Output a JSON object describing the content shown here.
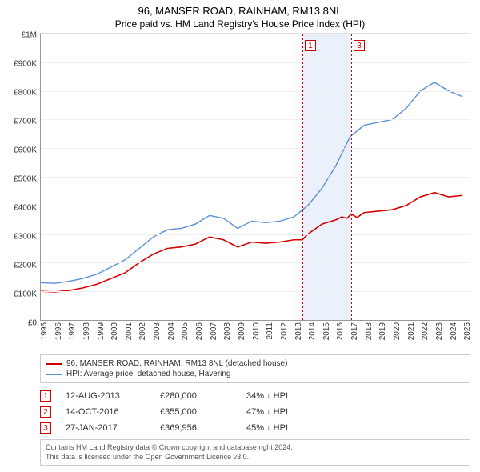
{
  "title": "96, MANSER ROAD, RAINHAM, RM13 8NL",
  "subtitle": "Price paid vs. HM Land Registry's House Price Index (HPI)",
  "chart": {
    "type": "line",
    "background_color": "#ffffff",
    "grid_color": "#eeeeee",
    "axis_color": "#999999",
    "shaded_band_color": "#eaf1fa",
    "x": {
      "min": 1995,
      "max": 2025.5,
      "ticks": [
        1995,
        1996,
        1997,
        1998,
        1999,
        2000,
        2001,
        2002,
        2003,
        2004,
        2005,
        2006,
        2007,
        2008,
        2009,
        2010,
        2011,
        2012,
        2013,
        2014,
        2015,
        2016,
        2017,
        2018,
        2019,
        2020,
        2021,
        2022,
        2023,
        2024,
        2025
      ],
      "label_fontsize": 10
    },
    "y": {
      "min": 0,
      "max": 1000000,
      "ticks": [
        0,
        100000,
        200000,
        300000,
        400000,
        500000,
        600000,
        700000,
        800000,
        900000,
        1000000
      ],
      "tick_labels": [
        "£0",
        "£100K",
        "£200K",
        "£300K",
        "£400K",
        "£500K",
        "£600K",
        "£700K",
        "£800K",
        "£900K",
        "£1M"
      ],
      "label_fontsize": 10
    },
    "shaded_band": {
      "x_start": 2013.6,
      "x_end": 2017.07
    },
    "markers": [
      {
        "num": "1",
        "x": 2013.6,
        "label_y": 40000
      },
      {
        "num": "3",
        "x": 2017.07,
        "label_y": 40000
      }
    ],
    "series": [
      {
        "name": "hpi",
        "label": "HPI: Average price, detached house, Havering",
        "color": "#5b8fd6",
        "width": 1.4,
        "points": [
          [
            1995,
            130000
          ],
          [
            1996,
            128000
          ],
          [
            1997,
            135000
          ],
          [
            1998,
            145000
          ],
          [
            1999,
            160000
          ],
          [
            2000,
            185000
          ],
          [
            2001,
            210000
          ],
          [
            2002,
            250000
          ],
          [
            2003,
            290000
          ],
          [
            2004,
            315000
          ],
          [
            2005,
            320000
          ],
          [
            2006,
            335000
          ],
          [
            2007,
            365000
          ],
          [
            2008,
            355000
          ],
          [
            2009,
            320000
          ],
          [
            2010,
            345000
          ],
          [
            2011,
            340000
          ],
          [
            2012,
            345000
          ],
          [
            2013,
            360000
          ],
          [
            2014,
            400000
          ],
          [
            2015,
            460000
          ],
          [
            2016,
            540000
          ],
          [
            2017,
            640000
          ],
          [
            2018,
            680000
          ],
          [
            2019,
            690000
          ],
          [
            2020,
            700000
          ],
          [
            2021,
            740000
          ],
          [
            2022,
            800000
          ],
          [
            2023,
            830000
          ],
          [
            2024,
            800000
          ],
          [
            2025,
            780000
          ]
        ]
      },
      {
        "name": "property",
        "label": "96, MANSER ROAD, RAINHAM, RM13 8NL (detached house)",
        "color": "#d40000",
        "width": 1.6,
        "points": [
          [
            1995,
            100000
          ],
          [
            1996,
            98000
          ],
          [
            1997,
            103000
          ],
          [
            1998,
            112000
          ],
          [
            1999,
            125000
          ],
          [
            2000,
            145000
          ],
          [
            2001,
            165000
          ],
          [
            2002,
            200000
          ],
          [
            2003,
            230000
          ],
          [
            2004,
            250000
          ],
          [
            2005,
            255000
          ],
          [
            2006,
            265000
          ],
          [
            2007,
            290000
          ],
          [
            2008,
            280000
          ],
          [
            2009,
            255000
          ],
          [
            2010,
            272000
          ],
          [
            2011,
            268000
          ],
          [
            2012,
            272000
          ],
          [
            2013,
            280000
          ],
          [
            2013.6,
            280000
          ],
          [
            2014,
            300000
          ],
          [
            2015,
            335000
          ],
          [
            2016,
            350000
          ],
          [
            2016.4,
            360000
          ],
          [
            2016.79,
            355000
          ],
          [
            2017.07,
            369956
          ],
          [
            2017.5,
            358000
          ],
          [
            2018,
            375000
          ],
          [
            2019,
            380000
          ],
          [
            2020,
            385000
          ],
          [
            2021,
            400000
          ],
          [
            2022,
            430000
          ],
          [
            2023,
            445000
          ],
          [
            2024,
            430000
          ],
          [
            2025,
            435000
          ]
        ]
      }
    ]
  },
  "legend": {
    "items": [
      {
        "color": "#d40000",
        "label": "96, MANSER ROAD, RAINHAM, RM13 8NL (detached house)"
      },
      {
        "color": "#5b8fd6",
        "label": "HPI: Average price, detached house, Havering"
      }
    ]
  },
  "sales": [
    {
      "num": "1",
      "date": "12-AUG-2013",
      "price": "£280,000",
      "diff": "34% ↓ HPI"
    },
    {
      "num": "2",
      "date": "14-OCT-2016",
      "price": "£355,000",
      "diff": "47% ↓ HPI"
    },
    {
      "num": "3",
      "date": "27-JAN-2017",
      "price": "£369,956",
      "diff": "45% ↓ HPI"
    }
  ],
  "footer": {
    "line1": "Contains HM Land Registry data © Crown copyright and database right 2024.",
    "line2": "This data is licensed under the Open Government Licence v3.0."
  }
}
